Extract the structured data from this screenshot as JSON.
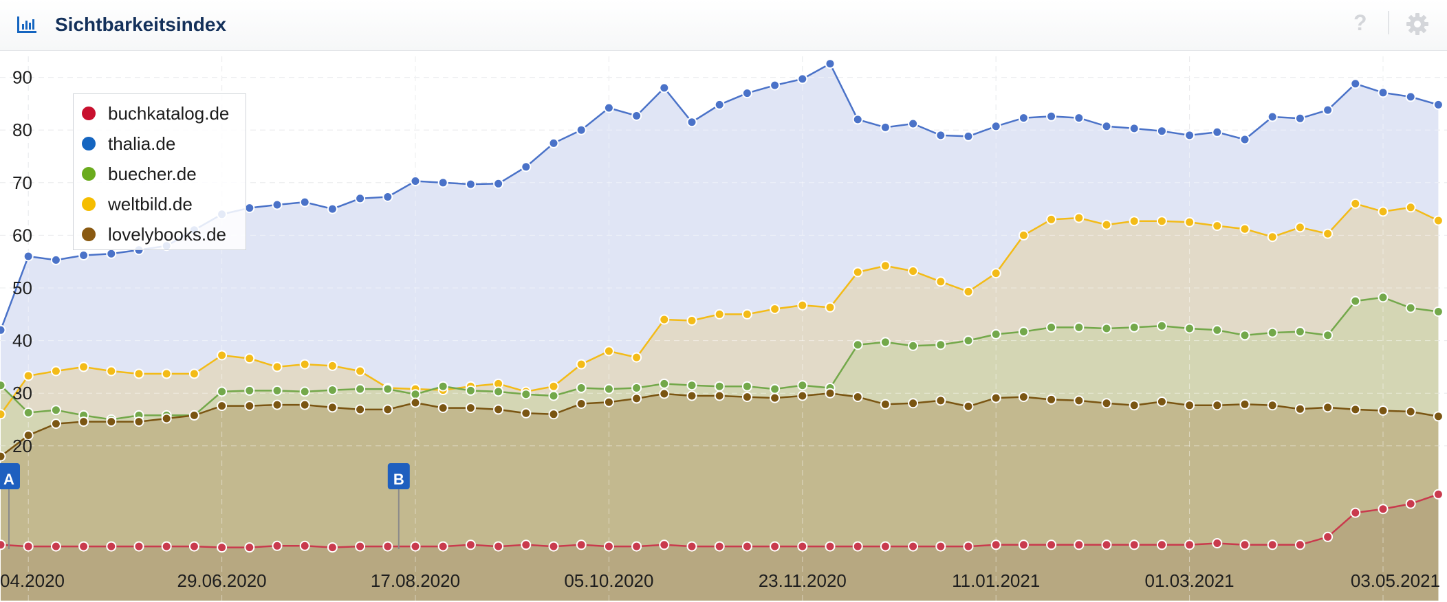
{
  "header": {
    "title": "Sichtbarkeitsindex",
    "help_label": "?"
  },
  "colors": {
    "buchkatalog.de": "#c8102e",
    "thalia.de": "#1565c0",
    "buecher.de": "#6aab1d",
    "weltbild.de": "#f5bd00",
    "lovelybooks.de": "#8a5a12"
  },
  "icons": {
    "header": "chart-bars-icon",
    "help": "help-icon",
    "settings": "gear-icon"
  },
  "chart_data": {
    "type": "area",
    "title": "Sichtbarkeitsindex",
    "x_tick_labels": [
      "04.2020",
      "29.06.2020",
      "17.08.2020",
      "05.10.2020",
      "23.11.2020",
      "11.01.2021",
      "01.03.2021",
      "03.05.2021"
    ],
    "y_tick_labels": [
      "20",
      "30",
      "40",
      "50",
      "60",
      "70",
      "80",
      "90"
    ],
    "ylim": [
      0,
      94
    ],
    "grid": true,
    "legend_position": "top-left",
    "events": [
      {
        "label": "A",
        "week_index": 0
      },
      {
        "label": "B",
        "week_index": 14
      }
    ],
    "series": [
      {
        "name": "thalia.de",
        "values": [
          42,
          56,
          55.3,
          56.2,
          56.5,
          57.2,
          58,
          61,
          64,
          65.2,
          65.8,
          66.3,
          65,
          67,
          67.3,
          70.3,
          70,
          69.7,
          69.8,
          73,
          77.5,
          80,
          84.2,
          82.7,
          88,
          81.5,
          84.8,
          87,
          88.5,
          89.7,
          92.6,
          82,
          80.5,
          81.2,
          79,
          78.8,
          80.7,
          82.3,
          82.6,
          82.3,
          80.7,
          80.3,
          79.8,
          79,
          79.6,
          78.2,
          82.5,
          82.2,
          83.8,
          88.8,
          87.1,
          86.3,
          84.8
        ]
      },
      {
        "name": "weltbild.de",
        "values": [
          26,
          33.3,
          34.2,
          35,
          34.2,
          33.7,
          33.7,
          33.7,
          37.2,
          36.6,
          35,
          35.5,
          35.2,
          34.2,
          31,
          30.8,
          30.6,
          31.3,
          31.8,
          30.3,
          31.3,
          35.5,
          38,
          36.8,
          44,
          43.8,
          45,
          45,
          46,
          46.7,
          46.3,
          53,
          54.2,
          53.2,
          51.2,
          49.3,
          52.8,
          60,
          63,
          63.3,
          62,
          62.7,
          62.7,
          62.5,
          61.8,
          61.2,
          59.7,
          61.5,
          60.3,
          66,
          64.5,
          65.3,
          62.8
        ]
      },
      {
        "name": "buecher.de",
        "values": [
          31.5,
          26.3,
          26.8,
          25.8,
          25,
          25.8,
          25.8,
          25.8,
          30.3,
          30.5,
          30.5,
          30.3,
          30.6,
          30.8,
          30.8,
          29.8,
          31.3,
          30.5,
          30.3,
          29.8,
          29.5,
          31,
          30.8,
          31,
          31.8,
          31.5,
          31.3,
          31.3,
          30.8,
          31.5,
          31,
          39.2,
          39.7,
          39,
          39.2,
          40,
          41.2,
          41.7,
          42.5,
          42.5,
          42.3,
          42.5,
          42.8,
          42.3,
          42,
          41,
          41.5,
          41.7,
          41,
          47.5,
          48.2,
          46.2,
          45.5
        ]
      },
      {
        "name": "lovelybooks.de",
        "values": [
          18,
          22,
          24.2,
          24.6,
          24.6,
          24.6,
          25.2,
          25.8,
          27.6,
          27.6,
          27.8,
          27.8,
          27.3,
          26.9,
          26.9,
          28.2,
          27.2,
          27.2,
          26.9,
          26.2,
          26,
          28,
          28.3,
          29,
          29.9,
          29.5,
          29.5,
          29.3,
          29.1,
          29.5,
          30,
          29.3,
          27.9,
          28.1,
          28.6,
          27.5,
          29.1,
          29.3,
          28.8,
          28.6,
          28.1,
          27.7,
          28.4,
          27.7,
          27.7,
          27.9,
          27.7,
          27,
          27.3,
          26.9,
          26.7,
          26.5,
          25.6
        ]
      },
      {
        "name": "buchkatalog.de",
        "values": [
          1.2,
          0.9,
          0.9,
          0.9,
          0.9,
          0.9,
          0.9,
          0.9,
          0.7,
          0.7,
          1,
          1,
          0.7,
          0.9,
          0.9,
          0.9,
          0.9,
          1.2,
          0.9,
          1.2,
          0.9,
          1.2,
          0.9,
          0.9,
          1.2,
          0.9,
          0.9,
          0.9,
          0.9,
          0.9,
          0.9,
          0.9,
          0.9,
          0.9,
          0.9,
          0.9,
          1.2,
          1.2,
          1.2,
          1.2,
          1.2,
          1.2,
          1.2,
          1.2,
          1.5,
          1.2,
          1.2,
          1.2,
          2.7,
          7.3,
          8,
          9,
          10.8
        ]
      }
    ]
  }
}
